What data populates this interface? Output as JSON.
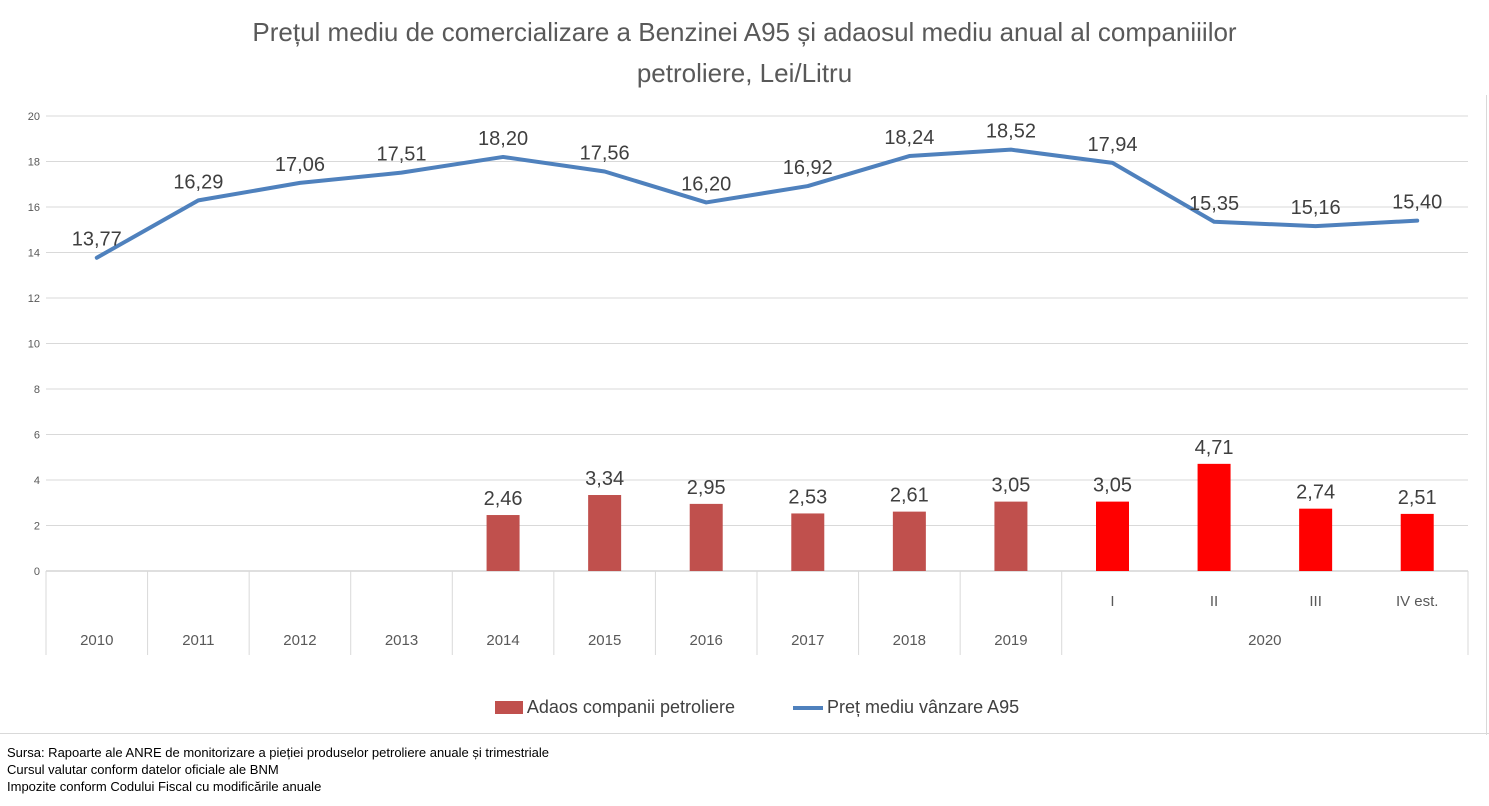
{
  "title": {
    "line1": "Prețul mediu de comercializare a Benzinei A95 și adaosul mediu anual al companiiilor",
    "line2": "petroliere, Lei/Litru"
  },
  "chart_data": {
    "type": "combo-bar-line",
    "categories": [
      "2010",
      "2011",
      "2012",
      "2013",
      "2014",
      "2015",
      "2016",
      "2017",
      "2018",
      "2019",
      "I",
      "II",
      "III",
      "IV est."
    ],
    "group_label": {
      "label": "2020",
      "from_index": 10,
      "to_index": 13
    },
    "series": [
      {
        "name": "Adaos companii petroliere",
        "type": "bar",
        "values": [
          null,
          null,
          null,
          null,
          2.46,
          3.34,
          2.95,
          2.53,
          2.61,
          3.05,
          3.05,
          4.71,
          2.74,
          2.51
        ],
        "labels": [
          null,
          null,
          null,
          null,
          "2,46",
          "3,34",
          "2,95",
          "2,53",
          "2,61",
          "3,05",
          "3,05",
          "4,71",
          "2,74",
          "2,51"
        ],
        "colors": [
          null,
          null,
          null,
          null,
          "#C0504D",
          "#C0504D",
          "#C0504D",
          "#C0504D",
          "#C0504D",
          "#C0504D",
          "#FF0000",
          "#FF0000",
          "#FF0000",
          "#FF0000"
        ]
      },
      {
        "name": "Preț mediu vânzare A95",
        "type": "line",
        "color": "#4F81BD",
        "values": [
          13.77,
          16.29,
          17.06,
          17.51,
          18.2,
          17.56,
          16.2,
          16.92,
          18.24,
          18.52,
          17.94,
          15.35,
          15.16,
          15.4
        ],
        "labels": [
          "13,77",
          "16,29",
          "17,06",
          "17,51",
          "18,20",
          "17,56",
          "16,20",
          "16,92",
          "18,24",
          "18,52",
          "17,94",
          "15,35",
          "15,16",
          "15,40"
        ]
      }
    ],
    "y_axis": {
      "min": 0,
      "max": 20,
      "step": 2,
      "tick_labels": [
        "0",
        "2",
        "4",
        "6",
        "8",
        "10",
        "12",
        "14",
        "16",
        "18",
        "20"
      ]
    },
    "grid": true,
    "legend_position": "bottom"
  },
  "legend": {
    "items": [
      {
        "label": "Adaos companii petroliere",
        "swatch": "bar-swatch",
        "color": "#C0504D"
      },
      {
        "label": "Preț mediu vânzare A95",
        "swatch": "line-swatch",
        "color": "#4F81BD"
      }
    ]
  },
  "footer": {
    "lines": [
      "Sursa: Rapoarte ale ANRE de monitorizare a pieției produselor petroliere anuale și trimestriale",
      "Cursul valutar conform datelor oficiale ale BNM",
      "Impozite conform Codului Fiscal cu modificările anuale"
    ]
  },
  "colors": {
    "grid": "#D9D9D9",
    "axis": "#BFBFBF",
    "tick": "#595959",
    "data_label": "#3F3F3F"
  }
}
